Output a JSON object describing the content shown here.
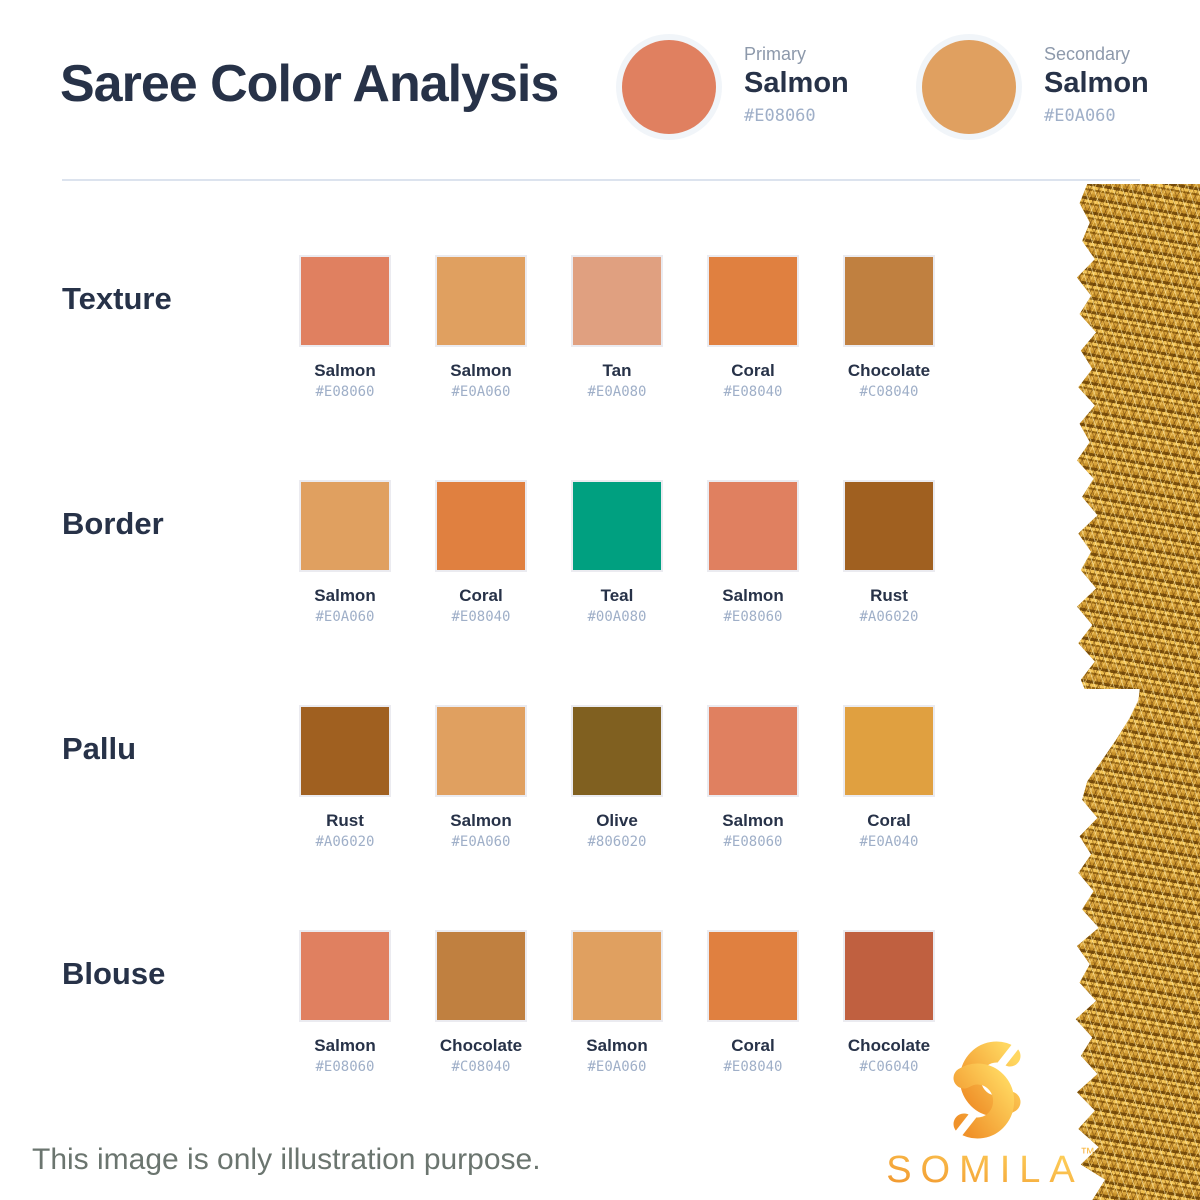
{
  "chart_data": {
    "type": "table",
    "title": "Saree Color Analysis",
    "primary": {
      "label": "Primary",
      "name": "Salmon",
      "hex": "#E08060"
    },
    "secondary": {
      "label": "Secondary",
      "name": "Salmon",
      "hex": "#E0A060"
    },
    "row_categories": [
      "Texture",
      "Border",
      "Pallu",
      "Blouse"
    ],
    "rows": [
      {
        "label": "Texture",
        "swatches": [
          {
            "name": "Salmon",
            "hex": "#E08060"
          },
          {
            "name": "Salmon",
            "hex": "#E0A060"
          },
          {
            "name": "Tan",
            "hex": "#E0A080"
          },
          {
            "name": "Coral",
            "hex": "#E08040"
          },
          {
            "name": "Chocolate",
            "hex": "#C08040"
          }
        ]
      },
      {
        "label": "Border",
        "swatches": [
          {
            "name": "Salmon",
            "hex": "#E0A060"
          },
          {
            "name": "Coral",
            "hex": "#E08040"
          },
          {
            "name": "Teal",
            "hex": "#00A080"
          },
          {
            "name": "Salmon",
            "hex": "#E08060"
          },
          {
            "name": "Rust",
            "hex": "#A06020"
          }
        ]
      },
      {
        "label": "Pallu",
        "swatches": [
          {
            "name": "Rust",
            "hex": "#A06020"
          },
          {
            "name": "Salmon",
            "hex": "#E0A060"
          },
          {
            "name": "Olive",
            "hex": "#806020"
          },
          {
            "name": "Salmon",
            "hex": "#E08060"
          },
          {
            "name": "Coral",
            "hex": "#E0A040"
          }
        ]
      },
      {
        "label": "Blouse",
        "swatches": [
          {
            "name": "Salmon",
            "hex": "#E08060"
          },
          {
            "name": "Chocolate",
            "hex": "#C08040"
          },
          {
            "name": "Salmon",
            "hex": "#E0A060"
          },
          {
            "name": "Coral",
            "hex": "#E08040"
          },
          {
            "name": "Chocolate",
            "hex": "#C06040"
          }
        ]
      }
    ]
  },
  "footer": {
    "disclaimer": "This image is only illustration purpose.",
    "brand": "SOMILA",
    "trademark": "™"
  },
  "icons": {
    "brand_logo": "somila-s-monogram-icon",
    "right_decoration": "gold-tinsel-garland"
  },
  "palette": {
    "heading_text": "#273248",
    "muted_label": "#8D99AB",
    "hex_text": "#9FAFC8",
    "divider": "#DCE3EE",
    "disclaimer_text": "#6B756F",
    "brand_gradient_start": "#F0922A",
    "brand_gradient_end": "#FFD760"
  }
}
